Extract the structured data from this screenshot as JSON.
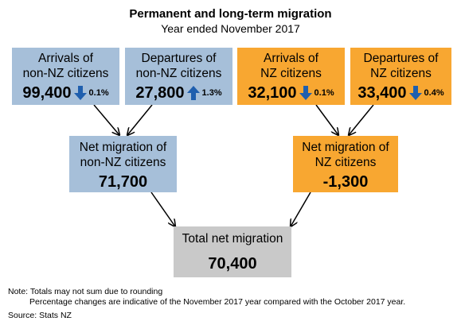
{
  "title": "Permanent and long-term migration",
  "subtitle": "Year ended November 2017",
  "boxes": {
    "arr_non_nz": {
      "label1": "Arrivals of",
      "label2": "non-NZ citizens",
      "value": "99,400",
      "direction": "down",
      "pct": "0.1%"
    },
    "dep_non_nz": {
      "label1": "Departures of",
      "label2": "non-NZ citizens",
      "value": "27,800",
      "direction": "up",
      "pct": "1.3%"
    },
    "arr_nz": {
      "label1": "Arrivals of",
      "label2": "NZ citizens",
      "value": "32,100",
      "direction": "down",
      "pct": "0.1%"
    },
    "dep_nz": {
      "label1": "Departures of",
      "label2": "NZ citizens",
      "value": "33,400",
      "direction": "down",
      "pct": "0.4%"
    },
    "net_non_nz": {
      "label1": "Net migration of",
      "label2": "non-NZ citizens",
      "value": "71,700"
    },
    "net_nz": {
      "label1": "Net migration of",
      "label2": "NZ citizens",
      "value": "-1,300"
    },
    "total": {
      "label1": "Total net migration",
      "value": "70,400"
    }
  },
  "colors": {
    "non_nz": "#a6bfd9",
    "nz": "#f8a731",
    "total": "#c9c9c9",
    "trend_arrow": "#1f5fae"
  },
  "notes": {
    "line1": "Note: Totals may not sum due to rounding",
    "line2": "Percentage changes are indicative of the November 2017 year compared with the October 2017 year.",
    "source": "Source: Stats NZ"
  }
}
